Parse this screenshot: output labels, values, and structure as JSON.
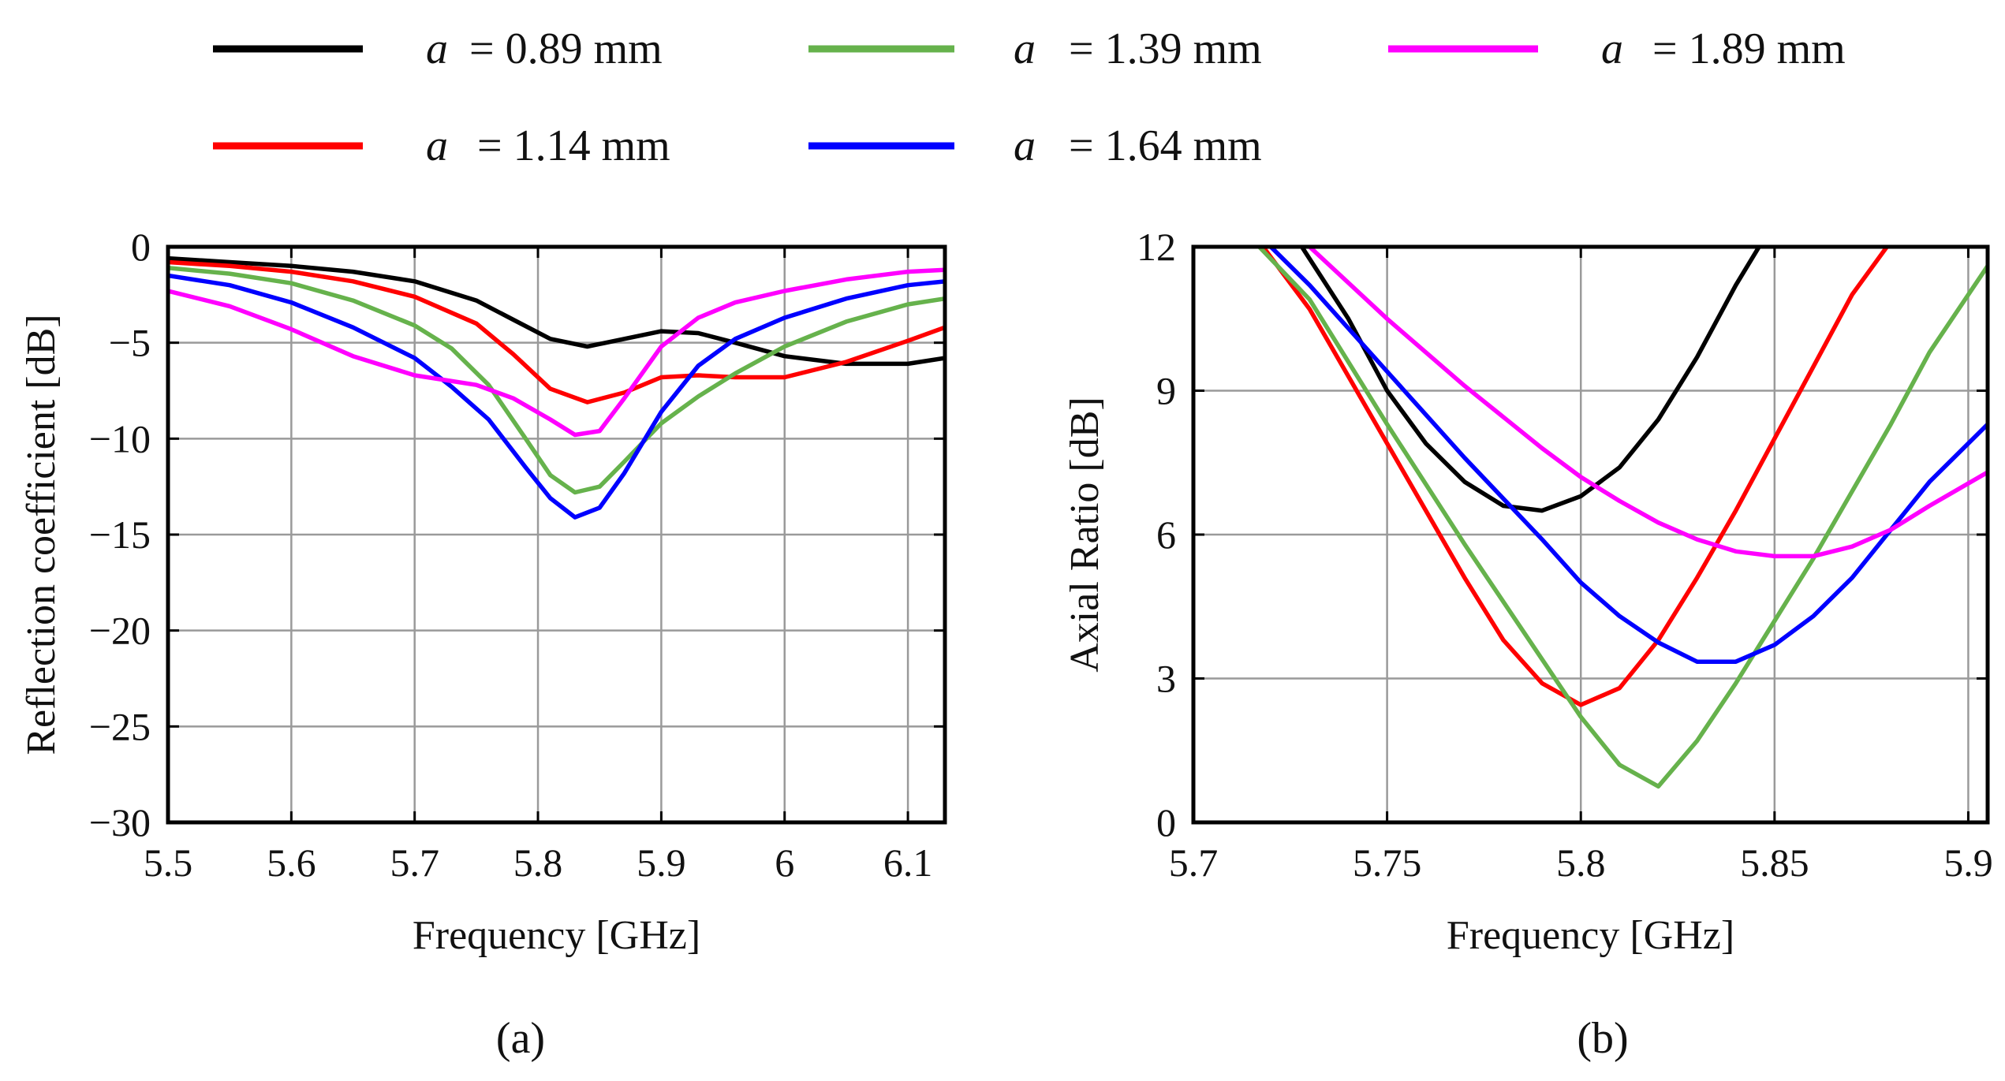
{
  "legend": {
    "entries": [
      {
        "variable": "a",
        "text": "= 0.89 mm",
        "color": "#000000"
      },
      {
        "variable": "a",
        "text": "= 1.14 mm",
        "color": "#ff0000"
      },
      {
        "variable": "a",
        "text": "= 1.39 mm",
        "color": "#66b24c"
      },
      {
        "variable": "a",
        "text": "= 1.64 mm",
        "color": "#0000ff"
      },
      {
        "variable": "a",
        "text": "= 1.89 mm",
        "color": "#ff00ff"
      }
    ]
  },
  "chart_data": [
    {
      "type": "line",
      "panel_label": "(a)",
      "xlabel": "Frequency [GHz]",
      "ylabel": "Reflection coefficient [dB]",
      "xlim": [
        5.5,
        6.13
      ],
      "ylim": [
        -30,
        0
      ],
      "xticks": [
        5.5,
        5.6,
        5.7,
        5.8,
        5.9,
        6,
        6.1
      ],
      "xtick_labels": [
        "5.5",
        "5.6",
        "5.7",
        "5.8",
        "5.9",
        "6",
        "6.1"
      ],
      "yticks": [
        0,
        -5,
        -10,
        -15,
        -20,
        -25,
        -30
      ],
      "ytick_labels": [
        "0",
        "−5",
        "−10",
        "−15",
        "−20",
        "−25",
        "−30"
      ],
      "grid": true,
      "series": [
        {
          "name": "a = 0.89 mm",
          "color": "#000000",
          "x": [
            5.5,
            5.55,
            5.6,
            5.65,
            5.7,
            5.75,
            5.78,
            5.81,
            5.84,
            5.87,
            5.9,
            5.93,
            5.96,
            6.0,
            6.05,
            6.1,
            6.13
          ],
          "y": [
            -0.6,
            -0.8,
            -1.0,
            -1.3,
            -1.8,
            -2.8,
            -3.8,
            -4.8,
            -5.2,
            -4.8,
            -4.4,
            -4.5,
            -5.0,
            -5.7,
            -6.1,
            -6.1,
            -5.8
          ]
        },
        {
          "name": "a = 1.14 mm",
          "color": "#ff0000",
          "x": [
            5.5,
            5.55,
            5.6,
            5.65,
            5.7,
            5.75,
            5.78,
            5.81,
            5.84,
            5.87,
            5.9,
            5.93,
            5.96,
            6.0,
            6.05,
            6.1,
            6.13
          ],
          "y": [
            -0.8,
            -1.0,
            -1.3,
            -1.8,
            -2.6,
            -4.0,
            -5.6,
            -7.4,
            -8.1,
            -7.6,
            -6.8,
            -6.7,
            -6.8,
            -6.8,
            -6.0,
            -4.9,
            -4.2
          ]
        },
        {
          "name": "a = 1.39 mm",
          "color": "#66b24c",
          "x": [
            5.5,
            5.55,
            5.6,
            5.65,
            5.7,
            5.73,
            5.76,
            5.79,
            5.81,
            5.83,
            5.85,
            5.87,
            5.9,
            5.93,
            5.96,
            6.0,
            6.05,
            6.1,
            6.13
          ],
          "y": [
            -1.1,
            -1.4,
            -1.9,
            -2.8,
            -4.1,
            -5.3,
            -7.2,
            -10.0,
            -11.9,
            -12.8,
            -12.5,
            -11.2,
            -9.2,
            -7.8,
            -6.6,
            -5.2,
            -3.9,
            -3.0,
            -2.7
          ]
        },
        {
          "name": "a = 1.64 mm",
          "color": "#0000ff",
          "x": [
            5.5,
            5.55,
            5.6,
            5.65,
            5.7,
            5.73,
            5.76,
            5.79,
            5.81,
            5.83,
            5.85,
            5.87,
            5.9,
            5.93,
            5.96,
            6.0,
            6.05,
            6.1,
            6.13
          ],
          "y": [
            -1.5,
            -2.0,
            -2.9,
            -4.2,
            -5.8,
            -7.3,
            -9.0,
            -11.5,
            -13.1,
            -14.1,
            -13.6,
            -11.8,
            -8.6,
            -6.2,
            -4.8,
            -3.7,
            -2.7,
            -2.0,
            -1.8
          ]
        },
        {
          "name": "a = 1.89 mm",
          "color": "#ff00ff",
          "x": [
            5.5,
            5.55,
            5.6,
            5.65,
            5.7,
            5.75,
            5.78,
            5.81,
            5.83,
            5.85,
            5.87,
            5.9,
            5.93,
            5.96,
            6.0,
            6.05,
            6.1,
            6.13
          ],
          "y": [
            -2.3,
            -3.1,
            -4.3,
            -5.7,
            -6.7,
            -7.2,
            -7.9,
            -9.0,
            -9.8,
            -9.6,
            -7.9,
            -5.2,
            -3.7,
            -2.9,
            -2.3,
            -1.7,
            -1.3,
            -1.2
          ]
        }
      ]
    },
    {
      "type": "line",
      "panel_label": "(b)",
      "xlabel": "Frequency [GHz]",
      "ylabel": "Axial Ratio [dB]",
      "xlim": [
        5.7,
        5.905
      ],
      "ylim": [
        0,
        12
      ],
      "xticks": [
        5.7,
        5.75,
        5.8,
        5.85,
        5.9
      ],
      "xtick_labels": [
        "5.7",
        "5.75",
        "5.8",
        "5.85",
        "5.9"
      ],
      "yticks": [
        0,
        3,
        6,
        9,
        12
      ],
      "ytick_labels": [
        "0",
        "3",
        "6",
        "9",
        "12"
      ],
      "grid": true,
      "series": [
        {
          "name": "a = 0.89 mm",
          "color": "#000000",
          "x": [
            5.728,
            5.74,
            5.75,
            5.76,
            5.77,
            5.78,
            5.79,
            5.8,
            5.81,
            5.82,
            5.83,
            5.84,
            5.846
          ],
          "y": [
            12,
            10.5,
            9.0,
            7.9,
            7.1,
            6.6,
            6.5,
            6.8,
            7.4,
            8.4,
            9.7,
            11.2,
            12
          ]
        },
        {
          "name": "a = 1.14 mm",
          "color": "#ff0000",
          "x": [
            5.718,
            5.73,
            5.75,
            5.77,
            5.78,
            5.79,
            5.8,
            5.81,
            5.82,
            5.83,
            5.84,
            5.85,
            5.86,
            5.87,
            5.879
          ],
          "y": [
            12,
            10.7,
            7.9,
            5.1,
            3.8,
            2.9,
            2.45,
            2.8,
            3.8,
            5.1,
            6.5,
            8.0,
            9.5,
            11.0,
            12
          ]
        },
        {
          "name": "a = 1.39 mm",
          "color": "#66b24c",
          "x": [
            5.717,
            5.73,
            5.75,
            5.77,
            5.79,
            5.8,
            5.81,
            5.82,
            5.83,
            5.84,
            5.85,
            5.86,
            5.87,
            5.88,
            5.89,
            5.905
          ],
          "y": [
            12,
            10.9,
            8.3,
            5.8,
            3.4,
            2.2,
            1.2,
            0.75,
            1.7,
            2.9,
            4.2,
            5.5,
            6.9,
            8.3,
            9.8,
            11.6
          ]
        },
        {
          "name": "a = 1.64 mm",
          "color": "#0000ff",
          "x": [
            5.72,
            5.73,
            5.75,
            5.77,
            5.79,
            5.8,
            5.81,
            5.82,
            5.83,
            5.84,
            5.85,
            5.86,
            5.87,
            5.88,
            5.89,
            5.905
          ],
          "y": [
            12,
            11.2,
            9.4,
            7.6,
            5.9,
            5.0,
            4.3,
            3.75,
            3.35,
            3.35,
            3.7,
            4.3,
            5.1,
            6.1,
            7.1,
            8.3
          ]
        },
        {
          "name": "a = 1.89 mm",
          "color": "#ff00ff",
          "x": [
            5.73,
            5.75,
            5.77,
            5.79,
            5.8,
            5.81,
            5.82,
            5.83,
            5.84,
            5.85,
            5.86,
            5.87,
            5.88,
            5.89,
            5.905
          ],
          "y": [
            12,
            10.5,
            9.1,
            7.8,
            7.2,
            6.7,
            6.25,
            5.9,
            5.65,
            5.55,
            5.55,
            5.75,
            6.1,
            6.6,
            7.3
          ]
        }
      ]
    }
  ]
}
